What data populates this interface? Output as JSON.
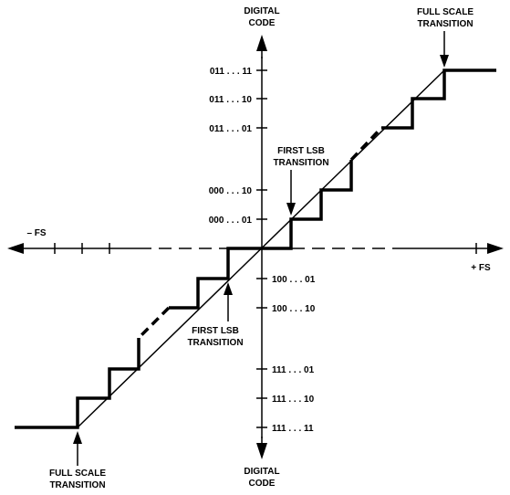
{
  "axis": {
    "y_title": [
      "DIGITAL",
      "CODE"
    ],
    "y_title_bottom": [
      "DIGITAL",
      "CODE"
    ],
    "neg_fs": "– FS",
    "pos_fs": "+ FS"
  },
  "codes": {
    "c011_11": "011 . . . 11",
    "c011_10": "011 . . . 10",
    "c011_01": "011 . . . 01",
    "c000_10": "000 . . . 10",
    "c000_01": "000 . . . 01",
    "c100_01": "100 . . . 01",
    "c100_10": "100 . . . 10",
    "c111_01": "111 . . . 01",
    "c111_10": "111 . . . 10",
    "c111_11": "111 . . . 11"
  },
  "annotations": {
    "full_scale_top": [
      "FULL SCALE",
      "TRANSITION"
    ],
    "first_lsb_top": [
      "FIRST LSB",
      "TRANSITION"
    ],
    "first_lsb_bottom": [
      "FIRST LSB",
      "TRANSITION"
    ],
    "full_scale_bottom": [
      "FULL SCALE",
      "TRANSITION"
    ]
  }
}
